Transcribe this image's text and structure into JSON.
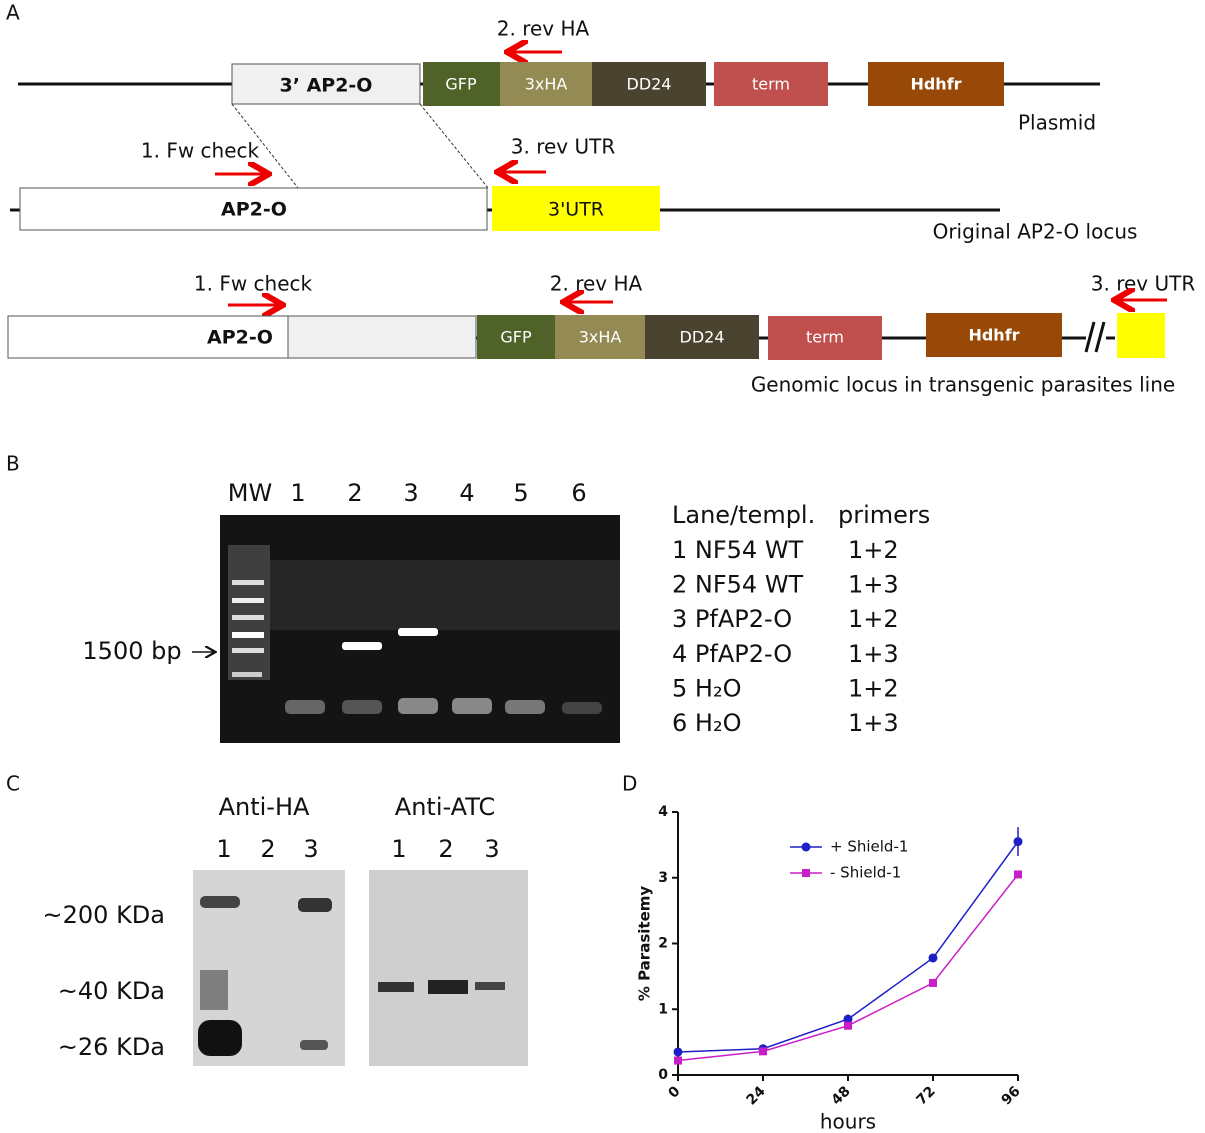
{
  "panel_a": {
    "label": "A",
    "plasmid": {
      "primer_rev_ha": "2. rev HA",
      "homology": "3’ AP2-O",
      "gfp": "GFP",
      "ha": "3xHA",
      "dd24": "DD24",
      "term": "term",
      "hdhfr": "Hdhfr",
      "caption": "Plasmid"
    },
    "original": {
      "primer_fw": "1. Fw check",
      "primer_rev_utr": "3. rev UTR",
      "gene": "AP2-O",
      "utr": "3'UTR",
      "caption": "Original AP2-O locus"
    },
    "transgenic": {
      "primer_fw": "1. Fw check",
      "primer_rev_ha": "2. rev HA",
      "primer_rev_utr": "3. rev UTR",
      "gene": "AP2-O",
      "gfp": "GFP",
      "ha": "3xHA",
      "dd24": "DD24",
      "term": "term",
      "hdhfr": "Hdhfr",
      "caption": "Genomic locus in transgenic parasites line"
    }
  },
  "panel_b": {
    "label": "B",
    "lanes": [
      "MW",
      "1",
      "2",
      "3",
      "4",
      "5",
      "6"
    ],
    "marker": "1500 bp",
    "table": {
      "header": [
        "Lane/templ.",
        "primers"
      ],
      "rows": [
        [
          "1 NF54 WT",
          "1+2"
        ],
        [
          "2 NF54 WT",
          "1+3"
        ],
        [
          "3 PfAP2-O",
          "1+2"
        ],
        [
          "4 PfAP2-O",
          "1+3"
        ],
        [
          "5 H₂O",
          "1+2"
        ],
        [
          "6 H₂O",
          "1+3"
        ]
      ]
    }
  },
  "panel_c": {
    "label": "C",
    "blots": [
      {
        "title": "Anti-HA",
        "lanes": [
          "1",
          "2",
          "3"
        ]
      },
      {
        "title": "Anti-ATC",
        "lanes": [
          "1",
          "2",
          "3"
        ]
      }
    ],
    "sizes": [
      "~200 KDa",
      "~40 KDa",
      "~26 KDa"
    ]
  },
  "panel_d_label": "D",
  "chart_data": {
    "type": "line",
    "x_label": "hours",
    "y_label": "% Parasitemy",
    "x": [
      0,
      24,
      48,
      72,
      96
    ],
    "xlim": [
      0,
      96
    ],
    "xticks": [
      0,
      24,
      48,
      72,
      96
    ],
    "ylim": [
      0,
      4
    ],
    "yticks": [
      0,
      1,
      2,
      3,
      4
    ],
    "series": [
      {
        "name": "+ Shield-1",
        "color": "#1f1fc8",
        "marker": "circle",
        "values": [
          0.35,
          0.4,
          0.85,
          1.78,
          3.55
        ],
        "errors": [
          0.02,
          0.02,
          0.07,
          0.04,
          0.22
        ]
      },
      {
        "name": "- Shield-1",
        "color": "#c81ec8",
        "marker": "square",
        "values": [
          0.22,
          0.36,
          0.75,
          1.4,
          3.05
        ]
      }
    ]
  }
}
